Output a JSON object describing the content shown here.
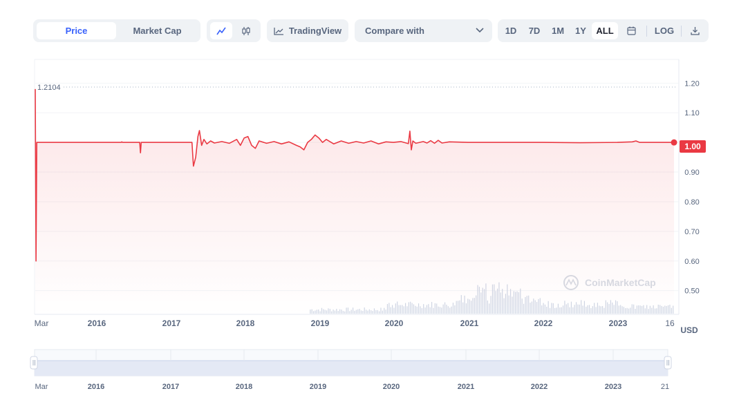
{
  "toolbar": {
    "price_tab": "Price",
    "market_cap_tab": "Market Cap",
    "line_chart_icon": "line-chart-icon",
    "candlestick_icon": "candlestick-icon",
    "tradingview_label": "TradingView",
    "compare_label": "Compare with",
    "ranges": [
      "1D",
      "7D",
      "1M",
      "1Y",
      "ALL"
    ],
    "active_range": "ALL",
    "calendar_icon": "calendar-icon",
    "log_label": "LOG",
    "download_icon": "download-icon"
  },
  "colors": {
    "line": "#ea3943",
    "active_tab": "#3861fb",
    "volume": "#cfd6e4",
    "navigator": "#e4e9f5"
  },
  "chart_data": {
    "type": "line",
    "ylabel": "USD",
    "y_ticks": [
      "1.20",
      "1.10",
      "1.00",
      "0.90",
      "0.80",
      "0.70",
      "0.60",
      "0.50"
    ],
    "ylim": [
      0.42,
      1.28
    ],
    "x_ticks": [
      "Mar",
      "2016",
      "2017",
      "2018",
      "2019",
      "2020",
      "2021",
      "2022",
      "2023",
      "16"
    ],
    "max_marker": "1.2104",
    "current_price": "1.00",
    "grid": true,
    "series": [
      {
        "values": [
          [
            2015.2,
            1.18
          ],
          [
            2015.21,
            0.6
          ],
          [
            2015.22,
            1.0
          ],
          [
            2016.35,
            1.0
          ],
          [
            2016.36,
            1.002
          ],
          [
            2016.37,
            1.0
          ],
          [
            2016.6,
            1.0
          ],
          [
            2016.61,
            0.965
          ],
          [
            2016.62,
            1.0
          ],
          [
            2017.3,
            1.0
          ],
          [
            2017.32,
            0.92
          ],
          [
            2017.35,
            0.95
          ],
          [
            2017.38,
            1.02
          ],
          [
            2017.4,
            1.04
          ],
          [
            2017.43,
            0.99
          ],
          [
            2017.46,
            1.01
          ],
          [
            2017.5,
            0.995
          ],
          [
            2017.55,
            1.005
          ],
          [
            2017.6,
            0.998
          ],
          [
            2017.7,
            1.003
          ],
          [
            2017.8,
            0.997
          ],
          [
            2017.9,
            1.01
          ],
          [
            2017.95,
            0.99
          ],
          [
            2018.0,
            1.015
          ],
          [
            2018.05,
            1.02
          ],
          [
            2018.1,
            0.99
          ],
          [
            2018.15,
            0.98
          ],
          [
            2018.2,
            1.005
          ],
          [
            2018.3,
            0.997
          ],
          [
            2018.4,
            1.003
          ],
          [
            2018.5,
            0.995
          ],
          [
            2018.6,
            1.002
          ],
          [
            2018.7,
            0.99
          ],
          [
            2018.75,
            0.985
          ],
          [
            2018.8,
            0.975
          ],
          [
            2018.85,
            1.0
          ],
          [
            2018.9,
            1.01
          ],
          [
            2018.95,
            1.025
          ],
          [
            2019.0,
            1.015
          ],
          [
            2019.05,
            1.0
          ],
          [
            2019.1,
            1.01
          ],
          [
            2019.2,
            0.995
          ],
          [
            2019.3,
            1.005
          ],
          [
            2019.4,
            0.997
          ],
          [
            2019.5,
            1.003
          ],
          [
            2019.6,
            0.998
          ],
          [
            2019.7,
            1.005
          ],
          [
            2019.8,
            0.995
          ],
          [
            2019.9,
            1.002
          ],
          [
            2020.0,
            1.0
          ],
          [
            2020.1,
            1.003
          ],
          [
            2020.2,
            0.996
          ],
          [
            2020.22,
            1.038
          ],
          [
            2020.24,
            0.975
          ],
          [
            2020.26,
            1.005
          ],
          [
            2020.3,
            0.997
          ],
          [
            2020.4,
            1.003
          ],
          [
            2020.45,
            0.998
          ],
          [
            2020.5,
            1.006
          ],
          [
            2020.55,
            0.997
          ],
          [
            2020.6,
            1.007
          ],
          [
            2020.65,
            0.998
          ],
          [
            2020.75,
            1.002
          ],
          [
            2021.0,
            1.0
          ],
          [
            2021.5,
            1.0
          ],
          [
            2022.0,
            1.0
          ],
          [
            2022.5,
            0.999
          ],
          [
            2023.0,
            1.0
          ],
          [
            2023.2,
            1.002
          ],
          [
            2023.25,
            1.005
          ],
          [
            2023.3,
            1.0
          ],
          [
            2023.6,
            1.0
          ],
          [
            2023.76,
            1.0
          ]
        ]
      }
    ]
  }
}
